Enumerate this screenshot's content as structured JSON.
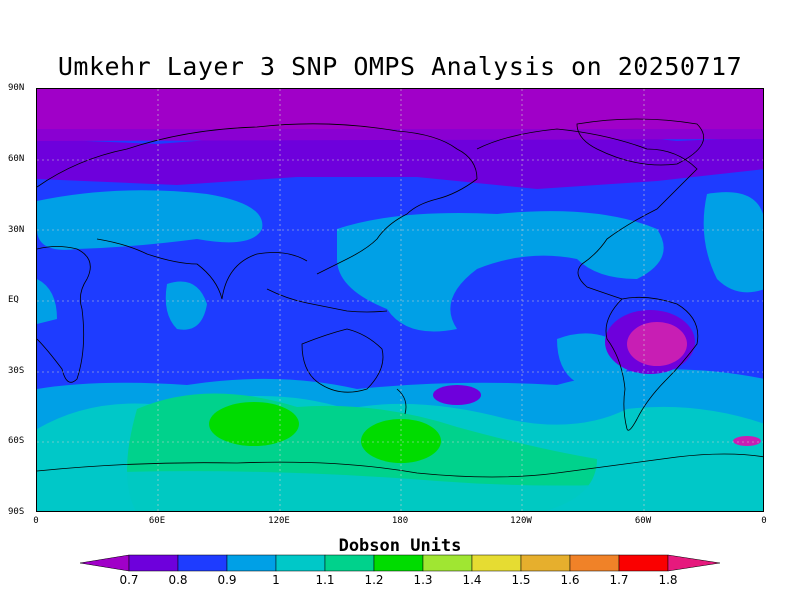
{
  "title": "Umkehr Layer 3 SNP OMPS Analysis on 20250717",
  "lat_ticks": [
    "90N",
    "60N",
    "30N",
    "EQ",
    "30S",
    "60S",
    "90S"
  ],
  "lon_ticks": [
    "0",
    "60E",
    "120E",
    "180",
    "120W",
    "60W",
    "0"
  ],
  "colorbar": {
    "title": "Dobson Units",
    "labels": [
      "0.7",
      "0.8",
      "0.9",
      "1",
      "1.1",
      "1.2",
      "1.3",
      "1.4",
      "1.5",
      "1.6",
      "1.7",
      "1.8"
    ],
    "colors": [
      "#a000c8",
      "#6e00dc",
      "#1e3cff",
      "#00a0e6",
      "#00c8c8",
      "#00d28c",
      "#00dc00",
      "#a0e632",
      "#e6dc32",
      "#e6af2d",
      "#f08228",
      "#fa0000",
      "#e6197d"
    ]
  },
  "field_colors": {
    "v07": "#a000c8",
    "v08": "#6e00dc",
    "v09": "#1e3cff",
    "v10": "#00a0e6",
    "v11": "#00c8c8",
    "v12": "#00d28c",
    "v13": "#00dc00",
    "v07b": "#c81eb4"
  }
}
